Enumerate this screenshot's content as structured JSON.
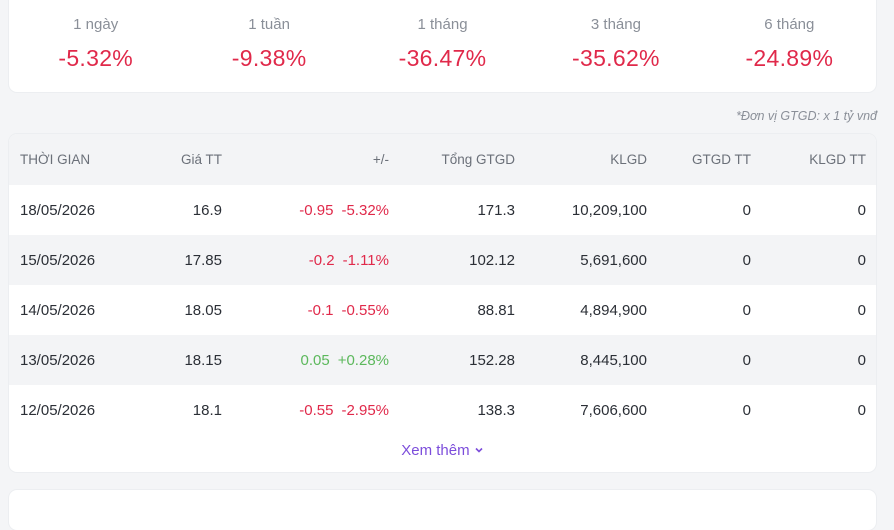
{
  "summary": [
    {
      "label": "1 ngày",
      "value": "-5.32%"
    },
    {
      "label": "1 tuần",
      "value": "-9.38%"
    },
    {
      "label": "1 tháng",
      "value": "-36.47%"
    },
    {
      "label": "3 tháng",
      "value": "-35.62%"
    },
    {
      "label": "6 tháng",
      "value": "-24.89%"
    }
  ],
  "note": "*Đơn vị GTGD: x 1 tỷ vnđ",
  "table": {
    "header": [
      "THỜI GIAN",
      "Giá TT",
      "+/-",
      "Tổng GTGD",
      "KLGD",
      "GTGD TT",
      "KLGD TT"
    ],
    "rows": [
      [
        "18/05/2026",
        "16.9",
        [
          "-0.95",
          "-5.32%"
        ],
        "171.3",
        "10,209,100",
        "0",
        "0"
      ],
      [
        "15/05/2026",
        "17.85",
        [
          "-0.2",
          "-1.11%"
        ],
        "102.12",
        "5,691,600",
        "0",
        "0"
      ],
      [
        "14/05/2026",
        "18.05",
        [
          "-0.1",
          "-0.55%"
        ],
        "88.81",
        "4,894,900",
        "0",
        "0"
      ],
      [
        "13/05/2026",
        "18.15",
        [
          "0.05",
          "+0.28%"
        ],
        "152.28",
        "8,445,100",
        "0",
        "0"
      ],
      [
        "12/05/2026",
        "18.1",
        [
          "-0.55",
          "-2.95%"
        ],
        "138.3",
        "7,606,600",
        "0",
        "0"
      ]
    ]
  },
  "more": "Xem thêm"
}
